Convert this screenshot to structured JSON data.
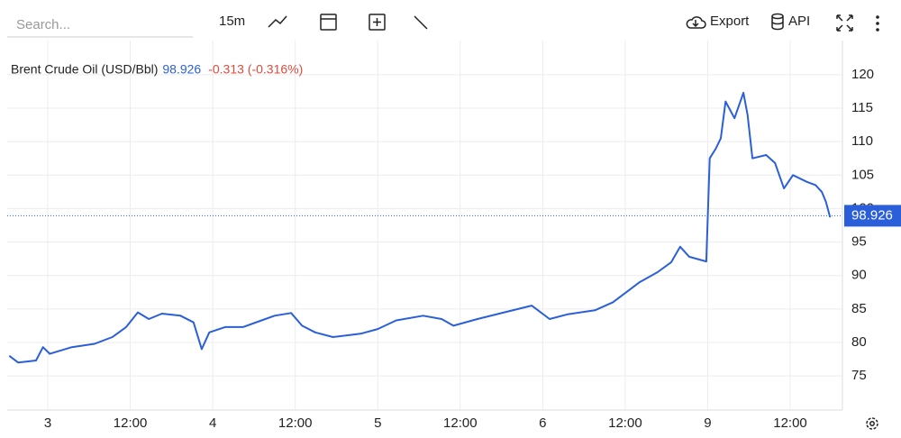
{
  "toolbar": {
    "search_placeholder": "Search...",
    "interval": "15m",
    "export": "Export",
    "api": "API"
  },
  "chart_data": {
    "type": "line",
    "title": "Brent Crude Oil (USD/Bbl)",
    "last": 98.926,
    "change": "-0.313 (-0.316%)",
    "x": [
      -5.6,
      -4.3,
      -1.7,
      -0.7,
      0.3,
      3.5,
      6.8,
      9.4,
      11.4,
      13.1,
      14.7,
      16.6,
      19.3,
      21.2,
      22.4,
      23.5,
      25.8,
      28.4,
      31.1,
      33,
      35.4,
      37,
      38.9,
      41.5,
      45.5,
      48,
      50.7,
      54.6,
      57.3,
      59,
      62.5,
      66.4,
      70.4,
      71.7,
      73,
      75.6,
      79.6,
      82.2,
      84.8,
      86.1,
      88.7,
      90.7,
      92,
      93.3,
      95.8,
      96.3,
      97.2,
      97.9,
      98.6,
      99.9,
      101.2,
      101.8,
      102.5,
      104.5,
      105.8,
      107.1,
      108.4,
      110.4,
      111.7,
      112.6,
      113.2,
      113.8
    ],
    "series": [
      {
        "name": "Brent Crude Oil (USD/Bbl)",
        "color": "#2b5fd9",
        "values": [
          78,
          77,
          77.3,
          79.3,
          78.3,
          79.3,
          79.8,
          80.8,
          82.3,
          84.5,
          83.5,
          84.3,
          84,
          83,
          79,
          81.5,
          82.3,
          82.3,
          83.3,
          84,
          84.4,
          82.5,
          81.5,
          80.8,
          81.3,
          82,
          83.3,
          84,
          83.5,
          82.5,
          83.5,
          84.5,
          85.5,
          84.5,
          83.5,
          84.2,
          84.8,
          86,
          88,
          89,
          90.5,
          92,
          94.3,
          92.8,
          92.1,
          107.5,
          109,
          110.5,
          116,
          113.5,
          117.3,
          114,
          107.5,
          108,
          106.8,
          103,
          105,
          104,
          103.5,
          102.5,
          101,
          98.7
        ]
      }
    ],
    "xlim": [
      -5.9,
      115.6
    ],
    "xticks": [
      {
        "value": 0,
        "label": "3"
      },
      {
        "value": 12,
        "label": "12:00"
      },
      {
        "value": 24,
        "label": "4"
      },
      {
        "value": 36,
        "label": "12:00"
      },
      {
        "value": 48,
        "label": "5"
      },
      {
        "value": 60,
        "label": "12:00"
      },
      {
        "value": 72,
        "label": "6"
      },
      {
        "value": 84,
        "label": "12:00"
      },
      {
        "value": 96,
        "label": "9"
      },
      {
        "value": 108,
        "label": "12:00"
      }
    ],
    "ylim": [
      69.9,
      125.1
    ],
    "yticks": [
      75,
      80,
      85,
      90,
      95,
      100,
      105,
      110,
      115,
      120
    ],
    "grid": true
  }
}
